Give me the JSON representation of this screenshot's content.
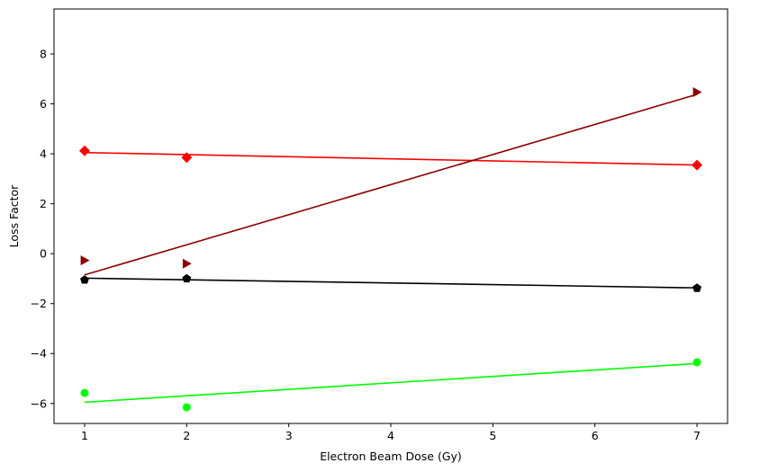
{
  "chart_data": {
    "type": "scatter",
    "title": "",
    "xlabel": "Electron Beam Dose (Gy)",
    "ylabel": "Loss Factor",
    "xlim": [
      0.7,
      7.3
    ],
    "ylim": [
      -6.8,
      9.8
    ],
    "xticks": [
      1,
      2,
      3,
      4,
      5,
      6,
      7
    ],
    "yticks": [
      -6,
      -4,
      -2,
      0,
      2,
      4,
      6,
      8
    ],
    "xtick_labels": [
      "1",
      "2",
      "3",
      "4",
      "5",
      "6",
      "7"
    ],
    "ytick_labels": [
      "−6",
      "−4",
      "−2",
      "0",
      "2",
      "4",
      "6",
      "8"
    ],
    "grid": false,
    "legend": "none",
    "series": [
      {
        "color": "#ff0000",
        "marker": "diamond",
        "x": [
          1,
          2,
          7
        ],
        "y": [
          4.12,
          3.85,
          3.55
        ],
        "fit": [
          [
            1,
            4.05
          ],
          [
            7,
            3.55
          ]
        ]
      },
      {
        "color": "#8b0000",
        "marker": "triangle-right",
        "x": [
          1,
          2,
          7
        ],
        "y": [
          -0.27,
          -0.4,
          6.47
        ],
        "fit": [
          [
            1,
            -0.85
          ],
          [
            7,
            6.38
          ]
        ]
      },
      {
        "color": "#000000",
        "marker": "pentagon",
        "x": [
          1,
          2,
          7
        ],
        "y": [
          -1.05,
          -1.0,
          -1.38
        ],
        "fit": [
          [
            1,
            -0.98
          ],
          [
            7,
            -1.37
          ]
        ]
      },
      {
        "color": "#00ff00",
        "marker": "circle",
        "x": [
          1,
          2,
          7
        ],
        "y": [
          -5.58,
          -6.15,
          -4.35
        ],
        "fit": [
          [
            1,
            -5.95
          ],
          [
            7,
            -4.4
          ]
        ]
      }
    ]
  }
}
